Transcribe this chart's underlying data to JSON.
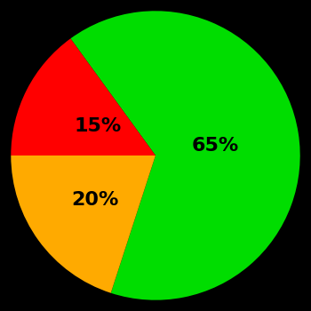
{
  "slices": [
    65,
    20,
    15
  ],
  "colors": [
    "#00dd00",
    "#ffaa00",
    "#ff0000"
  ],
  "labels": [
    "65%",
    "20%",
    "15%"
  ],
  "background_color": "#000000",
  "startangle": 126,
  "label_fontsize": 16,
  "label_fontweight": "bold",
  "label_radii": [
    0.42,
    0.52,
    0.45
  ]
}
